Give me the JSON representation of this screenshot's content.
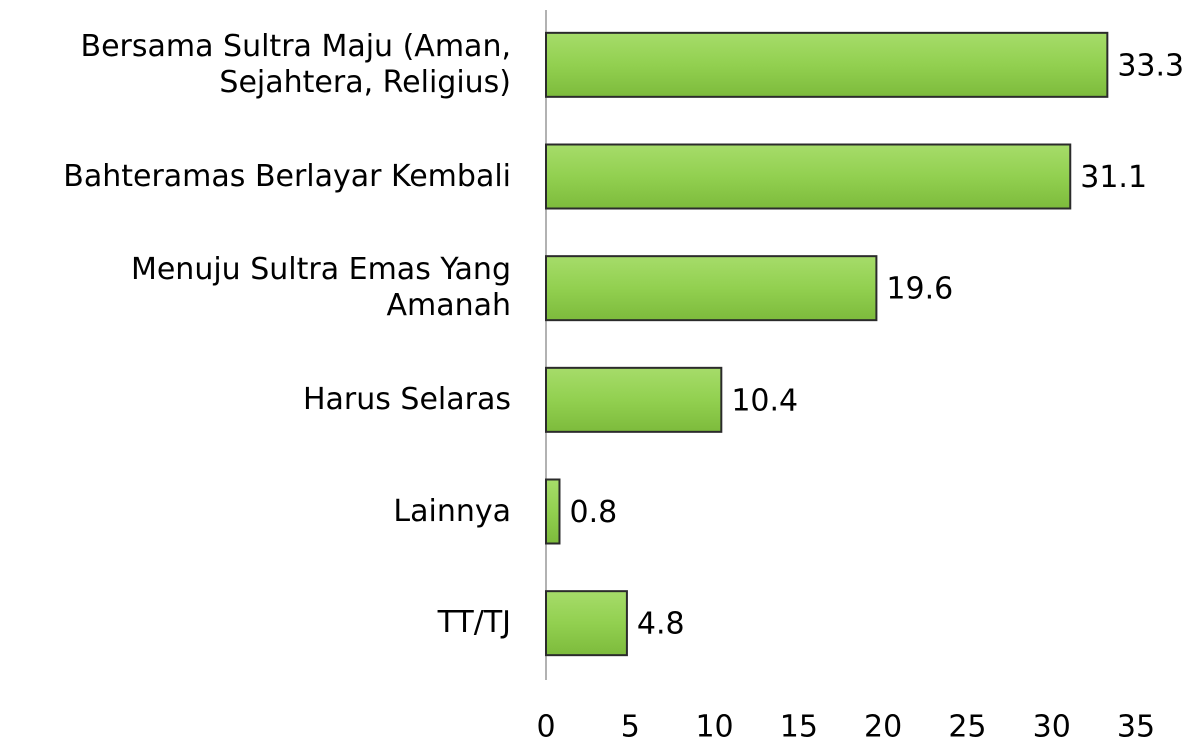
{
  "chart_data": {
    "type": "bar",
    "orientation": "horizontal",
    "categories": [
      "Bersama Sultra Maju (Aman, Sejahtera, Religius)",
      "Bahteramas Berlayar Kembali",
      "Menuju Sultra Emas Yang Amanah",
      "Harus Selaras",
      "Lainnya",
      "TT/TJ"
    ],
    "values": [
      33.3,
      31.1,
      19.6,
      10.4,
      0.8,
      4.8
    ],
    "color": "#92d050",
    "xlim": [
      0,
      35
    ],
    "xticks": [
      0,
      5,
      10,
      15,
      20,
      25,
      30,
      35
    ],
    "grid": false
  }
}
